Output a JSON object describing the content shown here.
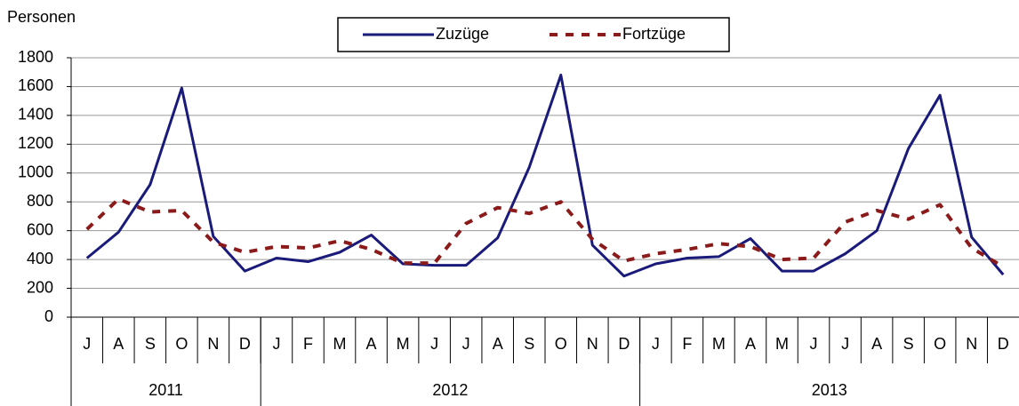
{
  "chart_data": {
    "type": "line",
    "ylabel": "Personen",
    "categories": [
      "J",
      "A",
      "S",
      "O",
      "N",
      "D",
      "J",
      "F",
      "M",
      "A",
      "M",
      "J",
      "J",
      "A",
      "S",
      "O",
      "N",
      "D",
      "J",
      "F",
      "M",
      "A",
      "M",
      "J",
      "J",
      "A",
      "S",
      "O",
      "N",
      "D"
    ],
    "groups": [
      {
        "label": "2011",
        "count": 6
      },
      {
        "label": "2012",
        "count": 12
      },
      {
        "label": "2013",
        "count": 12
      }
    ],
    "series": [
      {
        "name": "Zuzüge",
        "color": "#1a1a7a",
        "dash": false,
        "values": [
          410,
          590,
          920,
          1590,
          560,
          320,
          410,
          385,
          450,
          570,
          370,
          360,
          360,
          550,
          1040,
          1680,
          500,
          285,
          370,
          410,
          420,
          545,
          320,
          320,
          440,
          600,
          1170,
          1540,
          555,
          295
        ]
      },
      {
        "name": "Fortzüge",
        "color": "#8b1a1a",
        "dash": true,
        "values": [
          610,
          820,
          730,
          740,
          520,
          450,
          490,
          480,
          530,
          470,
          375,
          375,
          650,
          760,
          720,
          800,
          540,
          390,
          440,
          470,
          510,
          490,
          400,
          410,
          660,
          740,
          680,
          780,
          480,
          350
        ]
      }
    ],
    "ylim": [
      0,
      1800
    ],
    "yticks": [
      0,
      200,
      400,
      600,
      800,
      1000,
      1200,
      1400,
      1600,
      1800
    ],
    "grid": true
  }
}
